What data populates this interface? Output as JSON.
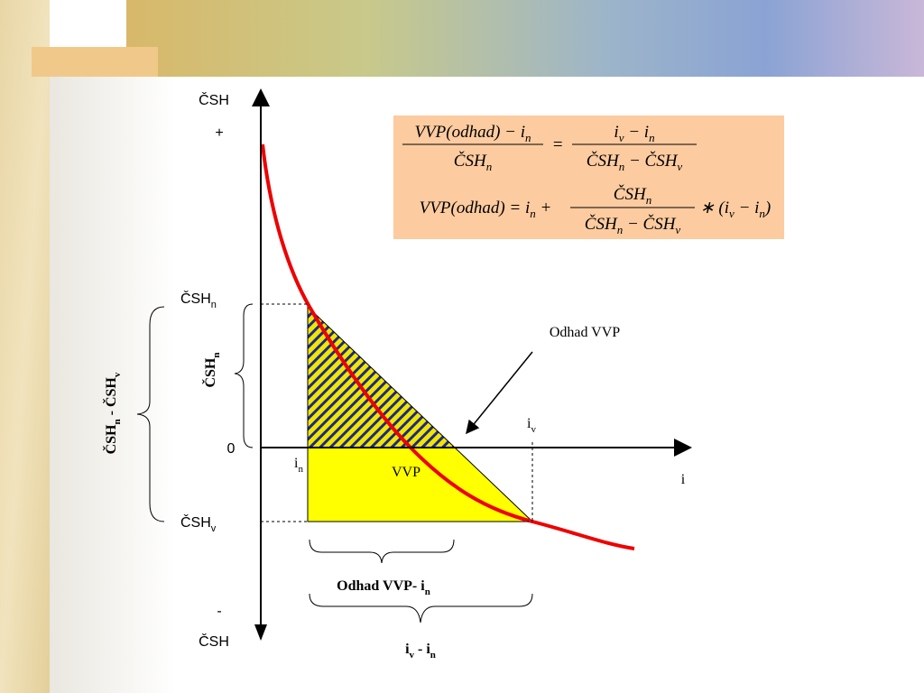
{
  "axis": {
    "y_top": "ČSH",
    "plus": "+",
    "zero": "0",
    "minus": "-",
    "y_bottom": "ČSH",
    "x": "i"
  },
  "labels": {
    "csh_n": {
      "base": "ČSH",
      "sub": "n"
    },
    "csh_v": {
      "base": "ČSH",
      "sub": "v"
    },
    "i_n": {
      "base": "i",
      "sub": "n"
    },
    "i_v": {
      "base": "i",
      "sub": "v"
    },
    "vvp": "VVP",
    "odhad_vvp": "Odhad VVP"
  },
  "braces": {
    "csh_n": [
      "ČSH",
      {
        "sub": "n"
      }
    ],
    "difference": [
      "ČSH",
      {
        "sub": "n"
      },
      " - ČSH",
      {
        "sub": "v"
      }
    ],
    "odhad_minus_in": [
      "Odhad VVP- i",
      {
        "sub": "n"
      }
    ],
    "iv_minus_in": [
      "i",
      {
        "sub": "v"
      },
      " - i",
      {
        "sub": "n"
      }
    ]
  },
  "formula": {
    "line1": {
      "lhs_num": [
        "VVP(odhad) − i",
        {
          "sub": "n"
        }
      ],
      "lhs_den": [
        "ČSH",
        {
          "sub": "n"
        }
      ],
      "eq": "=",
      "rhs_num": [
        "i",
        {
          "sub": "v"
        },
        " − i",
        {
          "sub": "n"
        }
      ],
      "rhs_den": [
        "ČSH",
        {
          "sub": "n"
        },
        " − ČSH",
        {
          "sub": "v"
        }
      ]
    },
    "line2": {
      "before": [
        "VVP(odhad) = i",
        {
          "sub": "n"
        },
        " +"
      ],
      "num": [
        "ČSH",
        {
          "sub": "n"
        }
      ],
      "den": [
        "ČSH",
        {
          "sub": "n"
        },
        " − ČSH",
        {
          "sub": "v"
        }
      ],
      "after": [
        "∗ (i",
        {
          "sub": "v"
        },
        " − i",
        {
          "sub": "n"
        },
        ")"
      ]
    }
  }
}
